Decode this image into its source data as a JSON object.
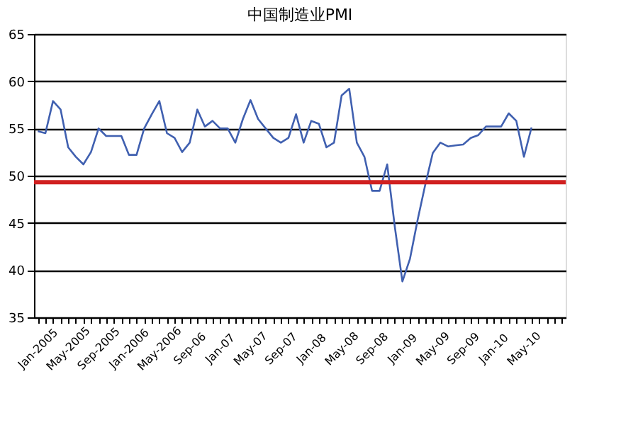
{
  "chart_data": {
    "type": "line",
    "title": "中国制造业PMI",
    "categories": [
      "Jan-2005",
      null,
      null,
      null,
      "May-2005",
      null,
      null,
      null,
      "Sep-2005",
      null,
      null,
      null,
      "Jan-2006",
      null,
      null,
      null,
      "May-2006",
      null,
      null,
      null,
      "Sep-06",
      null,
      null,
      null,
      "Jan-07",
      null,
      null,
      null,
      "May-07",
      null,
      null,
      null,
      "Sep-07",
      null,
      null,
      null,
      "Jan-08",
      null,
      null,
      null,
      "May-08",
      null,
      null,
      null,
      "Sep-08",
      null,
      null,
      null,
      "Jan-09",
      null,
      null,
      null,
      "May-09",
      null,
      null,
      null,
      "Sep-09",
      null,
      null,
      null,
      "Jan-10",
      null,
      null,
      null,
      "May-10",
      null,
      null,
      null,
      null,
      null
    ],
    "series": [
      {
        "color": "#4060b0",
        "values": [
          54.7,
          54.5,
          57.9,
          57,
          53,
          52,
          51.2,
          52.5,
          55,
          54.2,
          54.2,
          54.2,
          52.2,
          52.2,
          55,
          56.5,
          57.9,
          54.5,
          54,
          52.5,
          53.5,
          57,
          55.2,
          55.8,
          55,
          55,
          53.5,
          56,
          58,
          56,
          55,
          54,
          53.5,
          54,
          56.5,
          53.5,
          55.8,
          55.5,
          53,
          53.5,
          58.5,
          59.2,
          53.5,
          52,
          48.4,
          48.4,
          51.2,
          44.6,
          38.8,
          41.2,
          45.3,
          49,
          52.4,
          53.5,
          53.1,
          53.2,
          53.3,
          54,
          54.3,
          55.2,
          55.2,
          55.2,
          56.6,
          55.8,
          52,
          55.1,
          null,
          null,
          null,
          null
        ]
      }
    ],
    "ylim": [
      35,
      65
    ],
    "yticks": [
      35,
      40,
      45,
      50,
      55,
      60,
      65
    ],
    "grid": "y",
    "marker": "none",
    "line_style": "solid",
    "ref_lines": [
      {
        "axis": "y",
        "value": 49.3,
        "color": "#d02020"
      }
    ]
  }
}
